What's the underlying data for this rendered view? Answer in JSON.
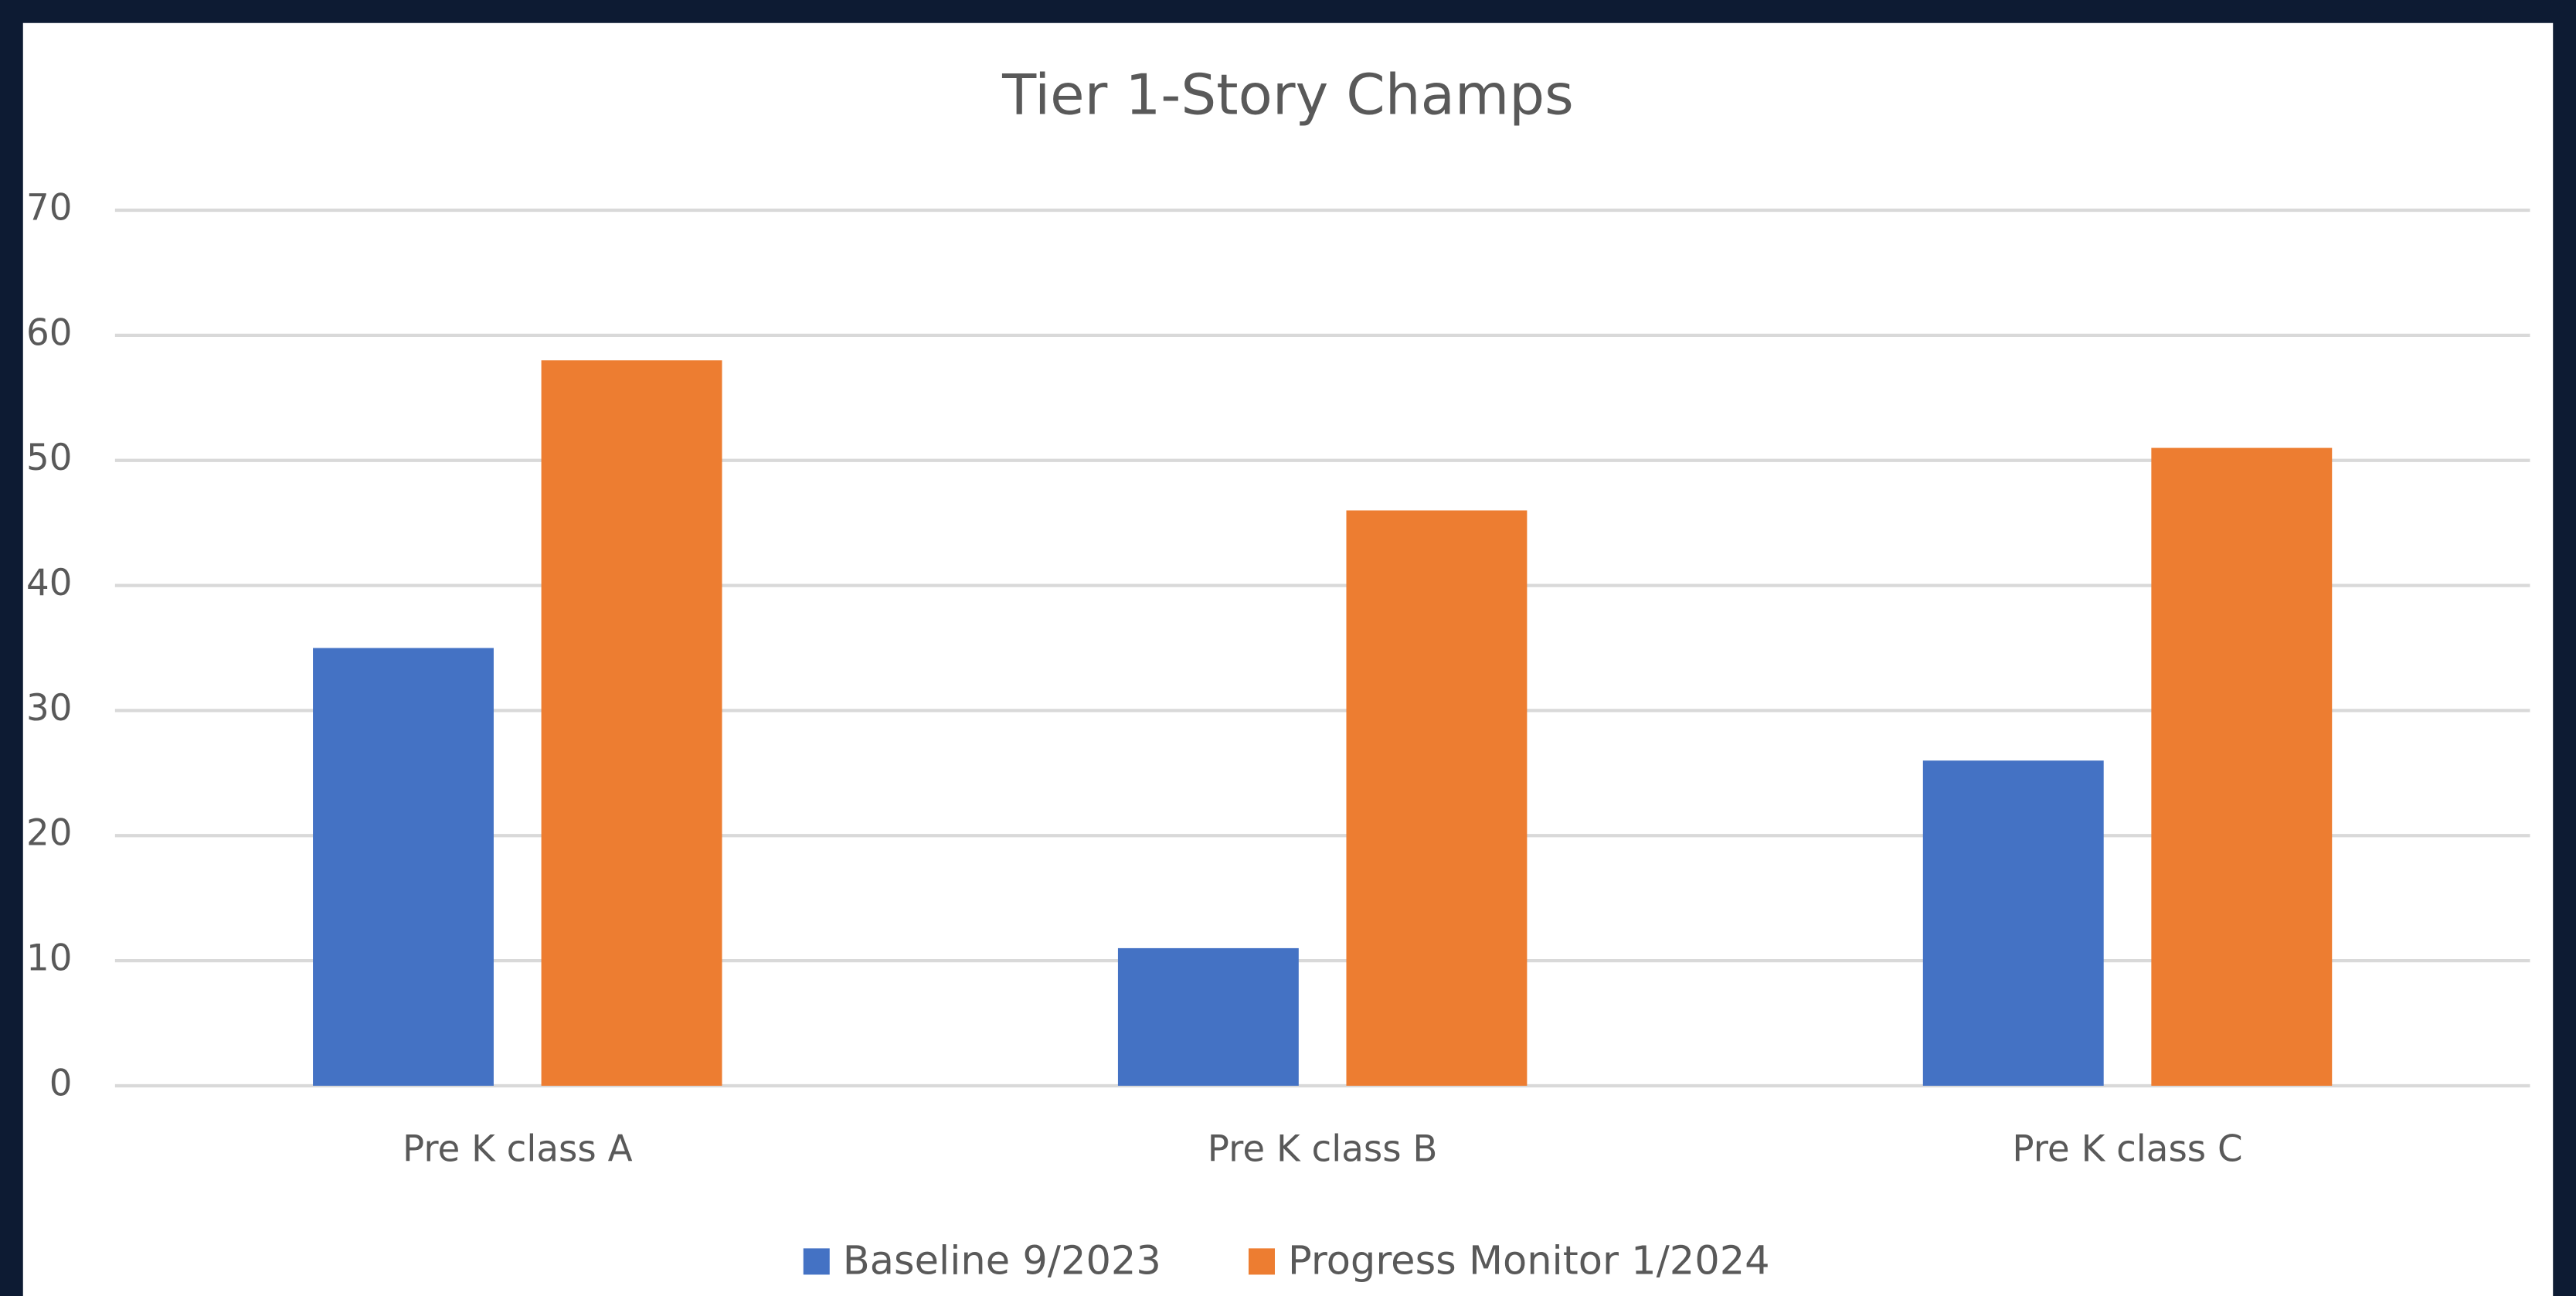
{
  "chart_data": {
    "type": "bar",
    "title": "Tier 1-Story Champs",
    "categories": [
      "Pre K class A",
      "Pre K class B",
      "Pre K class C"
    ],
    "series": [
      {
        "name": "Baseline 9/2023",
        "color": "#4472c4",
        "values": [
          35,
          11,
          26
        ]
      },
      {
        "name": "Progress Monitor 1/2024",
        "color": "#ed7d31",
        "values": [
          58,
          46,
          51
        ]
      }
    ],
    "ylim": [
      0,
      70
    ],
    "yticks": [
      0,
      10,
      20,
      30,
      40,
      50,
      60,
      70
    ],
    "grid": true,
    "legend": "bottom"
  }
}
